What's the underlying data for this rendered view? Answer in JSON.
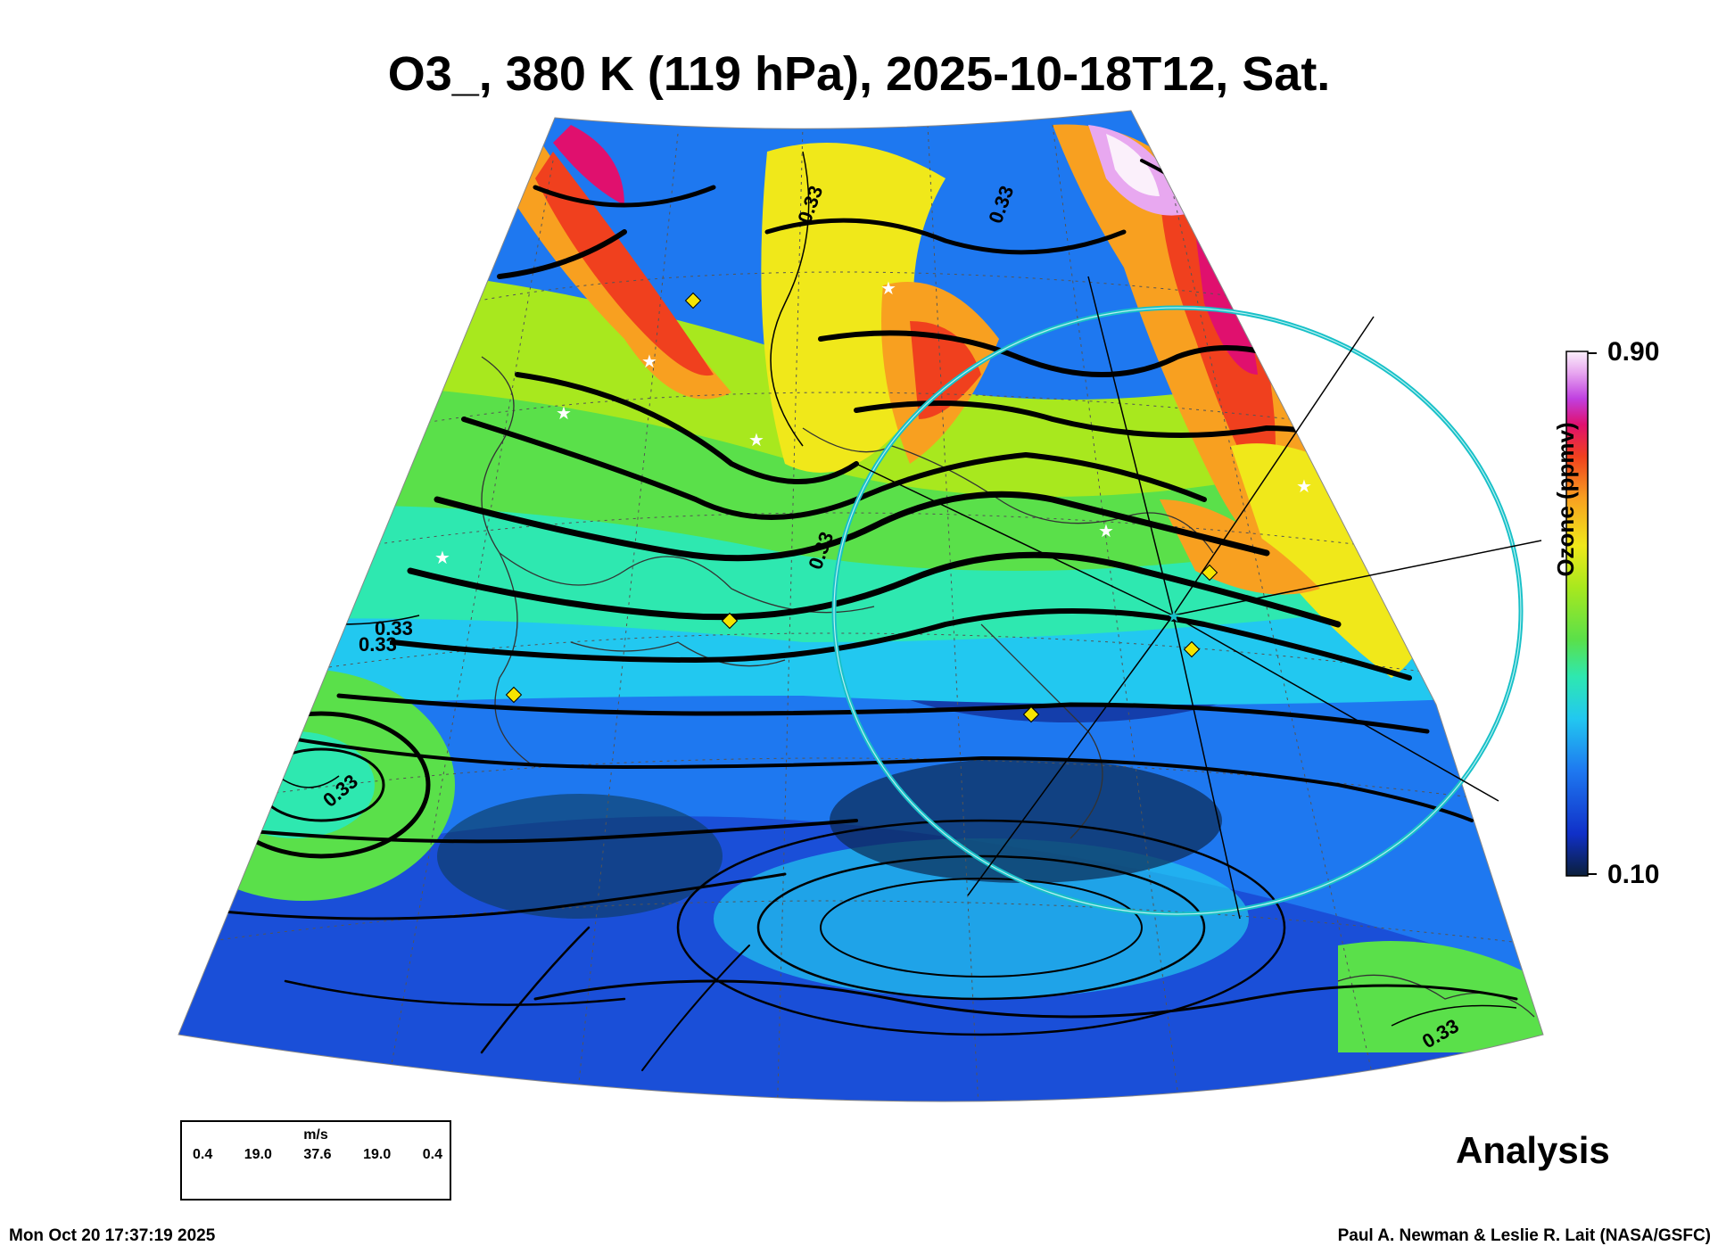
{
  "header": {
    "title": "O3_, 380 K (119 hPa), 2025-10-18T12, Sat."
  },
  "colorbar": {
    "max_label": "0.90",
    "min_label": "0.10",
    "axis_label": "Ozone (ppmv)",
    "colors": [
      "#0b1f3a",
      "#1030c8",
      "#1e78f0",
      "#22c8f0",
      "#2ee8b0",
      "#5ae04a",
      "#a8e81e",
      "#f0e81a",
      "#f8a020",
      "#f0401e",
      "#e0106e",
      "#c040e0",
      "#e8a8f0",
      "#fbf0fb"
    ]
  },
  "wind_legend": {
    "units": "m/s",
    "values": [
      "0.4",
      "19.0",
      "37.6",
      "19.0",
      "0.4"
    ]
  },
  "contour_labels": [
    "0.33",
    "0.33",
    "0.33",
    "0.33",
    "0.33",
    "0.33",
    "0.33"
  ],
  "map": {
    "highlight_ring_color": "#18c0c8",
    "marker_color": "#f5e400",
    "station_marker": "star-icon"
  },
  "analysis_label": "Analysis",
  "footer": {
    "timestamp": "Mon Oct 20 17:37:19 2025",
    "credit": "Paul A. Newman & Leslie R. Lait (NASA/GSFC)"
  }
}
